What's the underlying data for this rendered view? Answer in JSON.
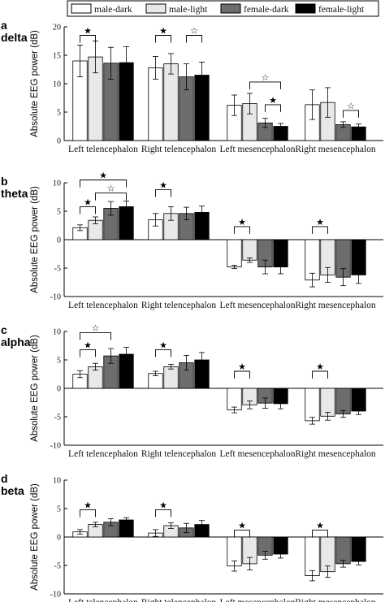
{
  "legend": [
    {
      "label": "male-dark",
      "color": "#ffffff"
    },
    {
      "label": "male-light",
      "color": "#e8e8e8"
    },
    {
      "label": "female-dark",
      "color": "#6d6d6d"
    },
    {
      "label": "female-light",
      "color": "#000000"
    }
  ],
  "chart_data": [
    {
      "type": "bar",
      "letter": "a",
      "name": "delta",
      "ylabel": "Absolute EEG power (dB)",
      "ylim": [
        0,
        20
      ],
      "yticks": [
        0,
        5,
        10,
        15,
        20
      ],
      "categories": [
        "Left telencephalon",
        "Right telencephalon",
        "Left mesencephalon",
        "Right mesencephalon"
      ],
      "series": [
        {
          "name": "male-dark",
          "values": [
            14.0,
            12.8,
            6.2,
            6.3
          ],
          "errors": [
            2.8,
            2.0,
            1.8,
            2.6
          ]
        },
        {
          "name": "male-light",
          "values": [
            14.7,
            13.5,
            6.5,
            6.7
          ],
          "errors": [
            2.8,
            1.8,
            1.8,
            2.6
          ]
        },
        {
          "name": "female-dark",
          "values": [
            13.6,
            11.2,
            3.1,
            2.8
          ],
          "errors": [
            2.8,
            2.3,
            0.8,
            0.5
          ]
        },
        {
          "name": "female-light",
          "values": [
            13.7,
            11.5,
            2.5,
            2.4
          ],
          "errors": [
            2.8,
            2.3,
            0.5,
            0.5
          ]
        }
      ],
      "significance": [
        {
          "category": 0,
          "from": 0,
          "to": 1,
          "marker": "★",
          "y": 18.5
        },
        {
          "category": 1,
          "from": 0,
          "to": 1,
          "marker": "★",
          "y": 18.5
        },
        {
          "category": 1,
          "from": 2,
          "to": 3,
          "marker": "☆",
          "y": 18.5
        },
        {
          "category": 2,
          "from": 1,
          "to": 3,
          "marker": "☆",
          "y": 10.3
        },
        {
          "category": 2,
          "from": 2,
          "to": 3,
          "marker": "★",
          "y": 6.3
        },
        {
          "category": 3,
          "from": 2,
          "to": 3,
          "marker": "☆",
          "y": 5.3
        }
      ]
    },
    {
      "type": "bar",
      "letter": "b",
      "name": "theta",
      "ylabel": "Absolute EEG power (dB)",
      "ylim": [
        -10,
        10
      ],
      "yticks": [
        -10,
        -5,
        0,
        5,
        10
      ],
      "categories": [
        "Left telencephalon",
        "Right telencephalon",
        "Left mesencephalon",
        "Right mesencephalon"
      ],
      "series": [
        {
          "name": "male-dark",
          "values": [
            2.1,
            3.5,
            -4.8,
            -7.1
          ],
          "errors": [
            0.5,
            1.1,
            0.3,
            1.2
          ]
        },
        {
          "name": "male-light",
          "values": [
            3.4,
            4.6,
            -3.6,
            -6.2
          ],
          "errors": [
            0.6,
            1.2,
            0.4,
            1.3
          ]
        },
        {
          "name": "female-dark",
          "values": [
            5.5,
            4.6,
            -4.8,
            -6.6
          ],
          "errors": [
            1.2,
            1.1,
            1.2,
            1.5
          ]
        },
        {
          "name": "female-light",
          "values": [
            5.8,
            4.8,
            -4.8,
            -6.2
          ],
          "errors": [
            1.0,
            1.1,
            1.2,
            1.5
          ]
        }
      ],
      "significance": [
        {
          "category": 0,
          "from": 0,
          "to": 3,
          "marker": "★",
          "y": 10.5
        },
        {
          "category": 0,
          "from": 1,
          "to": 3,
          "marker": "☆",
          "y": 8.2
        },
        {
          "category": 0,
          "from": 0,
          "to": 1,
          "marker": "★",
          "y": 5.8
        },
        {
          "category": 1,
          "from": 0,
          "to": 1,
          "marker": "★",
          "y": 8.8
        },
        {
          "category": 2,
          "from": 0,
          "to": 1,
          "marker": "★",
          "y": 2.3
        },
        {
          "category": 3,
          "from": 0,
          "to": 1,
          "marker": "★",
          "y": 2.3
        }
      ]
    },
    {
      "type": "bar",
      "letter": "c",
      "name": "alpha",
      "ylabel": "Absolute EEG power (dB)",
      "ylim": [
        -10,
        10
      ],
      "yticks": [
        -10,
        -5,
        0,
        5,
        10
      ],
      "categories": [
        "Left telencephalon",
        "Right telencephalon",
        "Left mesencephalon",
        "Right mesencephalon"
      ],
      "series": [
        {
          "name": "male-dark",
          "values": [
            2.5,
            2.6,
            -3.8,
            -5.7
          ],
          "errors": [
            0.6,
            0.4,
            0.5,
            0.6
          ]
        },
        {
          "name": "male-light",
          "values": [
            3.8,
            3.8,
            -2.9,
            -4.9
          ],
          "errors": [
            0.6,
            0.4,
            0.7,
            0.7
          ]
        },
        {
          "name": "female-dark",
          "values": [
            5.7,
            4.5,
            -2.6,
            -4.5
          ],
          "errors": [
            1.3,
            1.3,
            0.9,
            0.6
          ]
        },
        {
          "name": "female-light",
          "values": [
            6.0,
            5.0,
            -2.7,
            -4.0
          ],
          "errors": [
            1.2,
            1.3,
            0.9,
            0.6
          ]
        }
      ],
      "significance": [
        {
          "category": 0,
          "from": 0,
          "to": 2,
          "marker": "☆",
          "y": 9.8
        },
        {
          "category": 0,
          "from": 0,
          "to": 1,
          "marker": "★",
          "y": 6.8
        },
        {
          "category": 1,
          "from": 0,
          "to": 1,
          "marker": "★",
          "y": 6.8
        },
        {
          "category": 2,
          "from": 0,
          "to": 1,
          "marker": "★",
          "y": 3.0
        },
        {
          "category": 3,
          "from": 0,
          "to": 1,
          "marker": "★",
          "y": 3.0
        }
      ]
    },
    {
      "type": "bar",
      "letter": "d",
      "name": "beta",
      "ylabel": "Absolute EEG power (dB)",
      "ylim": [
        -10,
        10
      ],
      "yticks": [
        -10,
        -5,
        0,
        5,
        10
      ],
      "categories": [
        "Left telencephalon",
        "Right telencephalon",
        "Left mesencephalon",
        "Right mesencephalon"
      ],
      "series": [
        {
          "name": "male-dark",
          "values": [
            0.9,
            0.7,
            -5.1,
            -6.8
          ],
          "errors": [
            0.4,
            0.6,
            0.9,
            0.9
          ]
        },
        {
          "name": "male-light",
          "values": [
            2.2,
            2.0,
            -4.7,
            -6.1
          ],
          "errors": [
            0.4,
            0.5,
            1.1,
            1.0
          ]
        },
        {
          "name": "female-dark",
          "values": [
            2.6,
            1.6,
            -3.2,
            -4.7
          ],
          "errors": [
            0.6,
            0.8,
            0.7,
            0.6
          ]
        },
        {
          "name": "female-light",
          "values": [
            3.0,
            2.2,
            -3.0,
            -4.3
          ],
          "errors": [
            0.4,
            0.7,
            0.7,
            0.6
          ]
        }
      ],
      "significance": [
        {
          "category": 0,
          "from": 0,
          "to": 1,
          "marker": "★",
          "y": 4.8
        },
        {
          "category": 1,
          "from": 0,
          "to": 1,
          "marker": "★",
          "y": 4.8
        },
        {
          "category": 2,
          "from": 0,
          "to": 1,
          "marker": "★",
          "y": 1.2
        },
        {
          "category": 3,
          "from": 0,
          "to": 1,
          "marker": "★",
          "y": 1.2
        }
      ]
    }
  ]
}
